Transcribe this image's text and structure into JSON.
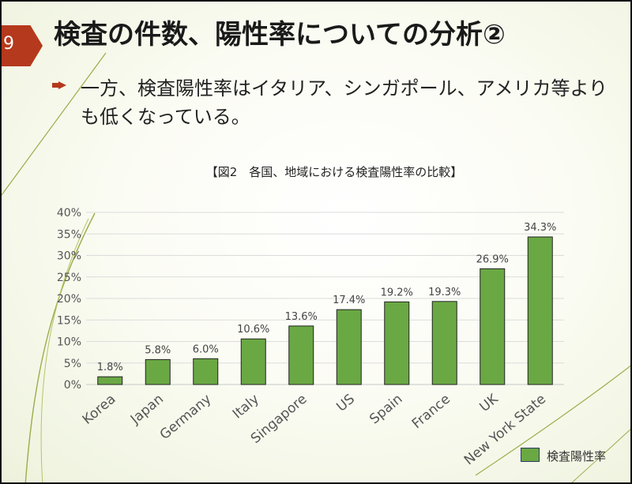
{
  "slide": {
    "page_number": "9",
    "title": "検査の件数、陽性率についての分析②",
    "bullet_text": "一方、検査陽性率はイタリア、シンガポール、アメリカ等よりも低くなっている。"
  },
  "colors": {
    "accent": "#b5391c",
    "bar_fill": "#6aa844",
    "bar_stroke": "#222222"
  },
  "chart_data": {
    "type": "bar",
    "title": "【図2　各国、地域における検査陽性率の比較】",
    "categories": [
      "Korea",
      "Japan",
      "Germany",
      "Italy",
      "Singapore",
      "US",
      "Spain",
      "France",
      "UK",
      "New York State"
    ],
    "series": [
      {
        "name": "検査陽性率",
        "values": [
          1.8,
          5.8,
          6.0,
          10.6,
          13.6,
          17.4,
          19.2,
          19.3,
          26.9,
          34.3
        ],
        "labels": [
          "1.8%",
          "5.8%",
          "6.0%",
          "10.6%",
          "13.6%",
          "17.4%",
          "19.2%",
          "19.3%",
          "26.9%",
          "34.3%"
        ]
      }
    ],
    "y_ticks": [
      "0%",
      "5%",
      "10%",
      "15%",
      "20%",
      "25%",
      "30%",
      "35%",
      "40%"
    ],
    "ylim": [
      0,
      40
    ],
    "grid": true,
    "legend": "bottom-right"
  }
}
